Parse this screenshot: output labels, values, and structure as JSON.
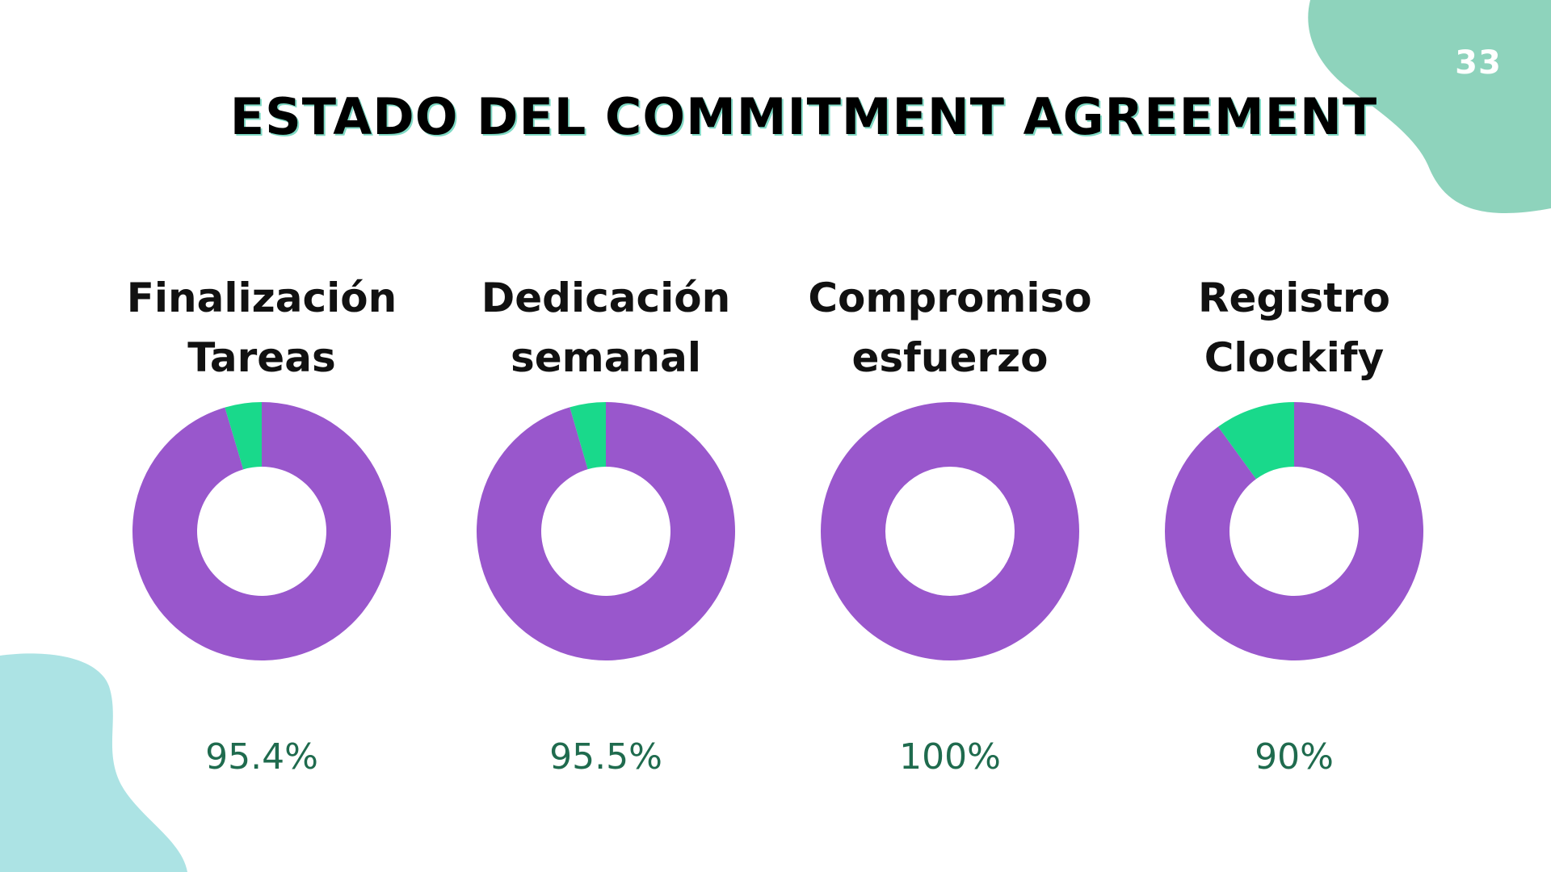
{
  "page_number": "33",
  "title": "ESTADO DEL COMMITMENT AGREEMENT",
  "colors": {
    "primary": "#9957cc",
    "remainder": "#19d98b",
    "percent_text": "#1f6b4e",
    "blob_top_right": "#8ed3bc",
    "blob_bottom_left": "#ace3e4"
  },
  "chart_data": {
    "type": "donut",
    "charts": [
      {
        "label": "Finalización\nTareas",
        "value": 95.4,
        "display": "95.4%"
      },
      {
        "label": "Dedicación\nsemanal",
        "value": 95.5,
        "display": "95.5%"
      },
      {
        "label": "Compromiso\nesfuerzo",
        "value": 100,
        "display": "100%"
      },
      {
        "label": "Registro\nClockify",
        "value": 90,
        "display": "90%"
      }
    ]
  }
}
